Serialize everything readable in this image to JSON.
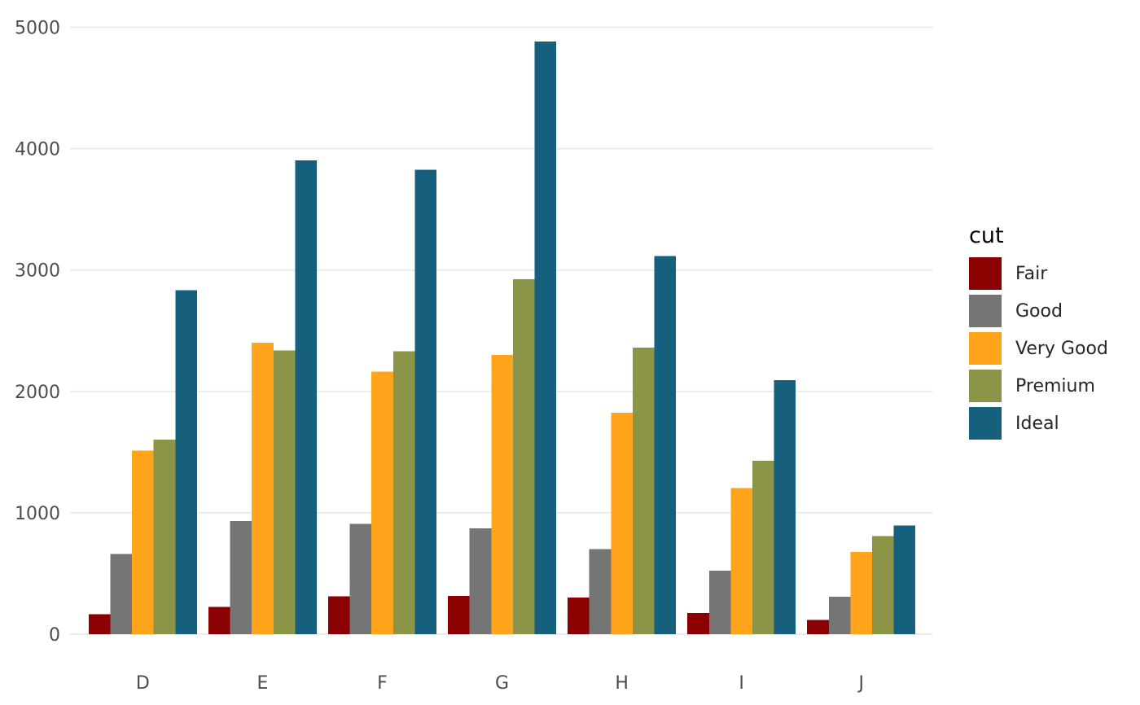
{
  "chart_data": {
    "type": "bar",
    "title": "",
    "xlabel": "",
    "ylabel": "",
    "categories": [
      "D",
      "E",
      "F",
      "G",
      "H",
      "I",
      "J"
    ],
    "series": [
      {
        "name": "Fair",
        "color": "#8B0000",
        "values": [
          163,
          224,
          312,
          314,
          303,
          175,
          119
        ]
      },
      {
        "name": "Good",
        "color": "#757575",
        "values": [
          662,
          933,
          909,
          871,
          702,
          522,
          307
        ]
      },
      {
        "name": "Very Good",
        "color": "#FFA41B",
        "values": [
          1513,
          2400,
          2164,
          2299,
          1824,
          1204,
          678
        ]
      },
      {
        "name": "Premium",
        "color": "#8B9447",
        "values": [
          1603,
          2337,
          2331,
          2924,
          2360,
          1428,
          808
        ]
      },
      {
        "name": "Ideal",
        "color": "#17607D",
        "values": [
          2834,
          3903,
          3826,
          4884,
          3115,
          2093,
          896
        ]
      }
    ],
    "legend_title": "cut",
    "legend_position": "right",
    "y_ticks": [
      0,
      1000,
      2000,
      3000,
      4000,
      5000
    ],
    "y_tick_labels": [
      "0",
      "1000",
      "2000",
      "3000",
      "4000",
      "5000"
    ],
    "ylim": [
      0,
      5000
    ],
    "grid": "horizontal-major-only",
    "bar_mode": "grouped"
  },
  "colors": {
    "background": "#FFFFFF",
    "gridline": "#EBEBEB",
    "axis_text": "#4D4D4D",
    "legend_label_text": "#262626",
    "legend_title_text": "#000000"
  }
}
